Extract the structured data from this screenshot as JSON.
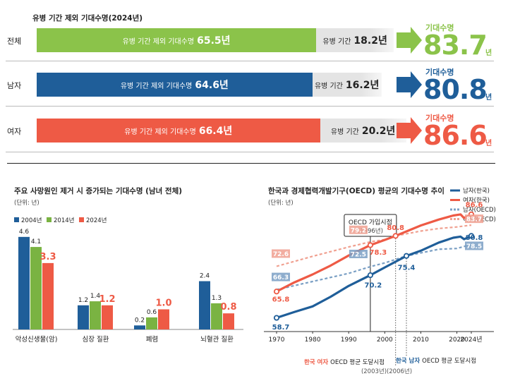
{
  "top": {
    "title": "유병 기간 제외 기대수명(2024년)",
    "rows": [
      {
        "label": "전체",
        "healthy_text": "유병 기간 제외 기대수명",
        "healthy": "65.5년",
        "sick_text": "유병 기간",
        "sick": "18.2년",
        "life_label": "기대수명",
        "life": "83.7",
        "unit": "년",
        "color": "#8bc34a"
      },
      {
        "label": "남자",
        "healthy_text": "유병 기간 제외 기대수명",
        "healthy": "64.6년",
        "sick_text": "유병 기간",
        "sick": "16.2년",
        "life_label": "기대수명",
        "life": "80.8",
        "unit": "년",
        "color": "#1f5e99"
      },
      {
        "label": "여자",
        "healthy_text": "유병 기간 제외 기대수명",
        "healthy": "66.4년",
        "sick_text": "유병 기간",
        "sick": "20.2년",
        "life_label": "기대수명",
        "life": "86.6",
        "unit": "년",
        "color": "#ee5a45"
      }
    ]
  },
  "colors": {
    "y2004": "#1f5e99",
    "y2014": "#7ab342",
    "y2024": "#ee5a45",
    "male_kr": "#1f5e99",
    "female_kr": "#ee5a45",
    "male_oecd": "#7a9fc4",
    "female_oecd": "#f0a090"
  },
  "chart_data": [
    {
      "type": "bar",
      "title": "주요 사망원인 제거 시 증가되는 기대수명 (남녀 전체)",
      "unit": "(단위: 년)",
      "categories": [
        "악성신생물(암)",
        "심장 질환",
        "폐렴",
        "뇌혈관 질환"
      ],
      "series": [
        {
          "name": "2004년",
          "values": [
            4.6,
            1.2,
            0.2,
            2.4
          ]
        },
        {
          "name": "2014년",
          "values": [
            4.1,
            1.4,
            0.6,
            1.3
          ]
        },
        {
          "name": "2024년",
          "values": [
            3.3,
            1.2,
            1.0,
            0.8
          ]
        }
      ],
      "ylim": [
        0,
        5
      ]
    },
    {
      "type": "line",
      "title": "한국과 경제협력개발기구(OECD) 평균의 기대수명 추이",
      "unit": "(단위: 년)",
      "x_ticks": [
        "1970",
        "1980",
        "1990",
        "2000",
        "2010",
        "2020",
        "2024년"
      ],
      "x_tick_values": [
        1970,
        1980,
        1990,
        2000,
        2010,
        2020,
        2024
      ],
      "xlim": [
        1970,
        2024
      ],
      "ylim": [
        55,
        90
      ],
      "series": [
        {
          "name": "남자(한국)",
          "style": "solid",
          "x": [
            1970,
            1975,
            1980,
            1985,
            1990,
            1996,
            2000,
            2006,
            2010,
            2015,
            2019,
            2021,
            2022,
            2024
          ],
          "y": [
            58.7,
            60.3,
            61.8,
            64.4,
            67.3,
            70.2,
            72.3,
            75.4,
            76.8,
            79.0,
            80.3,
            80.6,
            79.9,
            80.8
          ]
        },
        {
          "name": "여자(한국)",
          "style": "solid",
          "x": [
            1970,
            1975,
            1980,
            1985,
            1990,
            1996,
            2000,
            2003,
            2010,
            2015,
            2019,
            2021,
            2022,
            2024
          ],
          "y": [
            65.8,
            68.3,
            70.4,
            72.8,
            75.5,
            78.3,
            79.7,
            80.8,
            83.6,
            85.2,
            86.3,
            86.6,
            85.6,
            86.6
          ]
        },
        {
          "name": "남자(OECD)",
          "style": "dashed",
          "x": [
            1970,
            1980,
            1990,
            1996,
            2000,
            2006,
            2010,
            2015,
            2020,
            2024
          ],
          "y": [
            66.3,
            68.5,
            70.7,
            72.5,
            73.5,
            75.4,
            76.2,
            77.2,
            77.4,
            78.5
          ]
        },
        {
          "name": "여자(OECD)",
          "style": "dashed",
          "x": [
            1970,
            1980,
            1990,
            1996,
            2000,
            2003,
            2010,
            2015,
            2020,
            2024
          ],
          "y": [
            72.6,
            75.3,
            77.8,
            79.2,
            79.8,
            80.8,
            82.1,
            82.8,
            83.2,
            83.7
          ]
        }
      ],
      "point_labels": [
        {
          "series": "여자(OECD)",
          "x": 1970,
          "text": "72.6"
        },
        {
          "series": "남자(OECD)",
          "x": 1970,
          "text": "66.3"
        },
        {
          "series": "여자(한국)",
          "x": 1970,
          "text": "65.8"
        },
        {
          "series": "남자(한국)",
          "x": 1970,
          "text": "58.7"
        },
        {
          "series": "여자(OECD)",
          "x": 1996,
          "text": "79.2"
        },
        {
          "series": "남자(OECD)",
          "x": 1996,
          "text": "72.5"
        },
        {
          "series": "여자(한국)",
          "x": 1996,
          "text": "78.3"
        },
        {
          "series": "남자(한국)",
          "x": 1996,
          "text": "70.2"
        },
        {
          "series": "여자(한국)",
          "x": 2003,
          "text": "80.8"
        },
        {
          "series": "남자(한국)",
          "x": 2006,
          "text": "75.4"
        },
        {
          "series": "여자(한국)",
          "x": 2024,
          "text": "86.6"
        },
        {
          "series": "여자(OECD)",
          "x": 2024,
          "text": "83.7"
        },
        {
          "series": "남자(한국)",
          "x": 2024,
          "text": "80.8"
        },
        {
          "series": "남자(OECD)",
          "x": 2024,
          "text": "78.5"
        }
      ],
      "annotations": {
        "join": {
          "line1": "OECD 가입시점",
          "line2": "(1996년)",
          "x": 1996
        },
        "female": {
          "colored": "한국 여자",
          "rest": "OECD 평균 도달시점",
          "year": "(2003년)",
          "x": 2003
        },
        "male": {
          "colored": "한국 남자",
          "rest": "OECD 평균 도달시점",
          "year": "(2006년)",
          "x": 2006
        }
      }
    }
  ]
}
